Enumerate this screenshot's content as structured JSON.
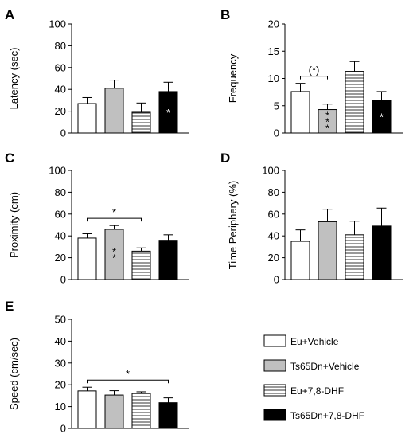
{
  "chart_data": [
    {
      "id": "A",
      "type": "bar",
      "panel_label": "A",
      "ylabel": "Latency (sec)",
      "ylim": [
        0,
        100
      ],
      "yticks": [
        0,
        20,
        40,
        60,
        80,
        100
      ],
      "categories": [
        "Eu+Vehicle",
        "Ts65Dn+Vehicle",
        "Eu+7,8-DHF",
        "Ts65Dn+7,8-DHF"
      ],
      "values": [
        27,
        41,
        19,
        38
      ],
      "errors": [
        5.5,
        7.5,
        8.5,
        8.5
      ],
      "in_bar_marks": [
        "",
        "",
        "",
        "*"
      ],
      "brackets": []
    },
    {
      "id": "B",
      "type": "bar",
      "panel_label": "B",
      "ylabel": "Frequency",
      "ylim": [
        0,
        20
      ],
      "yticks": [
        0,
        5,
        10,
        15,
        20
      ],
      "categories": [
        "Eu+Vehicle",
        "Ts65Dn+Vehicle",
        "Eu+7,8-DHF",
        "Ts65Dn+7,8-DHF"
      ],
      "values": [
        7.6,
        4.3,
        11.3,
        6.0
      ],
      "errors": [
        1.5,
        1.0,
        1.8,
        1.6
      ],
      "in_bar_marks": [
        "",
        "***",
        "",
        "*"
      ],
      "brackets": [
        {
          "from": 0,
          "to": 1,
          "label": "(*)"
        }
      ]
    },
    {
      "id": "C",
      "type": "bar",
      "panel_label": "C",
      "ylabel": "Proximity (cm)",
      "ylim": [
        0,
        100
      ],
      "yticks": [
        0,
        20,
        40,
        60,
        80,
        100
      ],
      "categories": [
        "Eu+Vehicle",
        "Ts65Dn+Vehicle",
        "Eu+7,8-DHF",
        "Ts65Dn+7,8-DHF"
      ],
      "values": [
        38,
        46,
        26,
        36
      ],
      "errors": [
        4,
        3.5,
        3,
        5
      ],
      "in_bar_marks": [
        "",
        "**",
        "",
        ""
      ],
      "brackets": [
        {
          "from": 0,
          "to": 2,
          "label": "*"
        }
      ]
    },
    {
      "id": "D",
      "type": "bar",
      "panel_label": "D",
      "ylabel": "Time Periphery (%)",
      "ylim": [
        0,
        100
      ],
      "yticks": [
        0,
        20,
        40,
        60,
        80,
        100
      ],
      "categories": [
        "Eu+Vehicle",
        "Ts65Dn+Vehicle",
        "Eu+7,8-DHF",
        "Ts65Dn+7,8-DHF"
      ],
      "values": [
        35,
        53,
        41,
        49
      ],
      "errors": [
        10.5,
        11.5,
        12.5,
        16.5
      ],
      "in_bar_marks": [
        "",
        "",
        "",
        ""
      ],
      "brackets": []
    },
    {
      "id": "E",
      "type": "bar",
      "panel_label": "E",
      "ylabel": "Speed (cm/sec)",
      "ylim": [
        0,
        50
      ],
      "yticks": [
        0,
        10,
        20,
        30,
        40,
        50
      ],
      "categories": [
        "Eu+Vehicle",
        "Ts65Dn+Vehicle",
        "Eu+7,8-DHF",
        "Ts65Dn+7,8-DHF"
      ],
      "values": [
        17.2,
        15.3,
        16.0,
        11.8
      ],
      "errors": [
        1.7,
        2.0,
        0.8,
        2.2
      ],
      "in_bar_marks": [
        "",
        "",
        "",
        ""
      ],
      "brackets": [
        {
          "from": 0,
          "to": 3,
          "label": "*"
        }
      ]
    }
  ],
  "legend": {
    "placement": "bottom-right",
    "items": [
      {
        "label": "Eu+Vehicle",
        "style": "white"
      },
      {
        "label": "Ts65Dn+Vehicle",
        "style": "gray"
      },
      {
        "label": "Eu+7,8-DHF",
        "style": "striped"
      },
      {
        "label": "Ts65Dn+7,8-DHF",
        "style": "black"
      }
    ]
  },
  "colors": {
    "white": "#ffffff",
    "gray": "#c0c0c0",
    "black": "#000000",
    "stroke": "#000000"
  }
}
